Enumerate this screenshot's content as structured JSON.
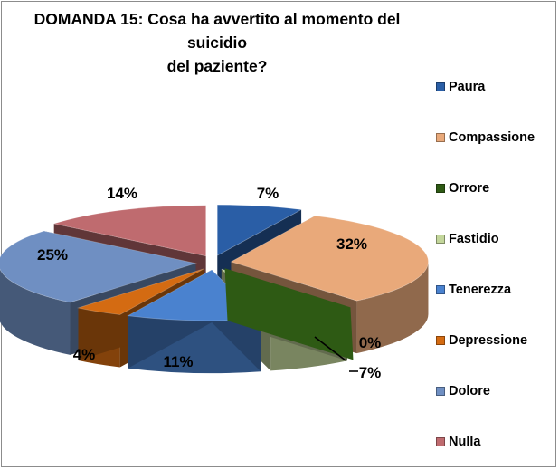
{
  "chart_data": {
    "type": "pie",
    "title": "DOMANDA 15: Cosa ha avvertito al momento del suicidio del paziente?",
    "title_lines": [
      "DOMANDA 15: Cosa ha avvertito al momento del suicidio",
      "del paziente?"
    ],
    "categories": [
      "Paura",
      "Compassione",
      "Orrore",
      "Fastidio",
      "Tenerezza",
      "Depressione",
      "Dolore",
      "Nulla"
    ],
    "values": [
      7,
      32,
      0,
      7,
      11,
      4,
      25,
      14
    ],
    "labels": [
      "7%",
      "32%",
      "0%",
      "7%",
      "11%",
      "4%",
      "25%",
      "14%"
    ],
    "colors": [
      "#2a5ea6",
      "#e9a97a",
      "#2e5a14",
      "#c3d69b",
      "#4a82cf",
      "#d46b12",
      "#6f8fc2",
      "#bf6b6f"
    ],
    "style": "exploded 3D pie",
    "legend_position": "right"
  }
}
